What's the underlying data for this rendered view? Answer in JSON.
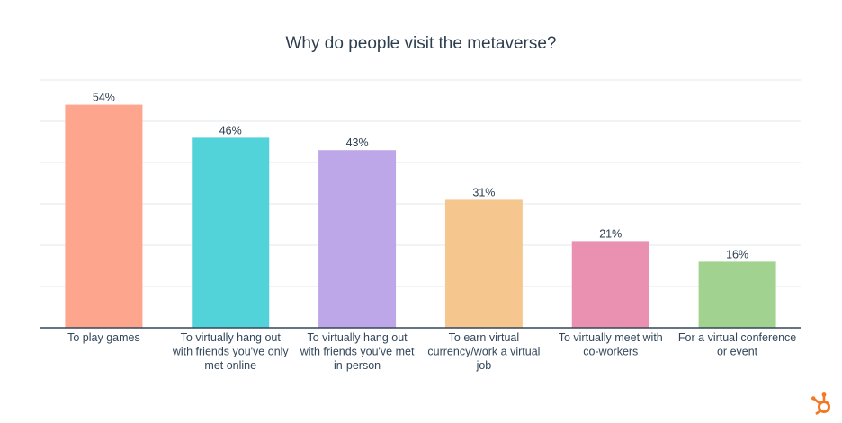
{
  "chart_data": {
    "type": "bar",
    "title": "Why do people visit the metaverse?",
    "categories": [
      [
        "To play games"
      ],
      [
        "To virtually hang out",
        "with friends you've only",
        "met online"
      ],
      [
        "To virtually hang out",
        "with friends you've met",
        "in-person"
      ],
      [
        "To earn virtual",
        "currency/work a virtual",
        "job"
      ],
      [
        "To virtually meet with",
        "co-workers"
      ],
      [
        "For a virtual conference",
        "or event"
      ]
    ],
    "values": [
      54,
      46,
      43,
      31,
      21,
      16
    ],
    "value_labels": [
      "54%",
      "46%",
      "43%",
      "31%",
      "21%",
      "16%"
    ],
    "bar_colors": [
      "#fea58e",
      "#51d3d9",
      "#bea7e8",
      "#f5c78e",
      "#ea90b1",
      "#a2d28f"
    ],
    "xlabel": "",
    "ylabel": "",
    "ylim": [
      0,
      60
    ],
    "grid": true,
    "legend": "none"
  },
  "brand": {
    "icon": "hubspot-sprocket-icon",
    "color": "#f57722"
  }
}
